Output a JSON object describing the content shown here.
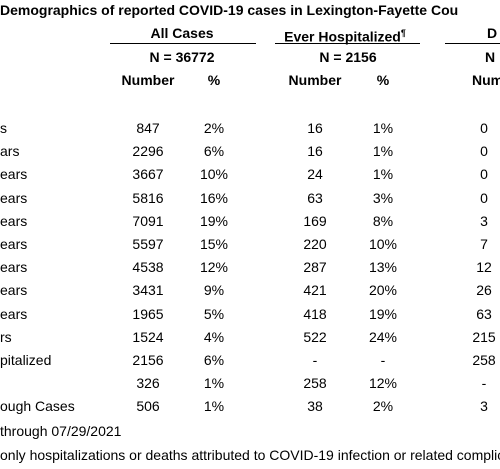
{
  "header": {
    "title": "Demographics of reported COVID-19 cases in Lexington-Fayette Cou"
  },
  "table": {
    "groups": [
      {
        "label": "All Cases",
        "n": "N = 36772"
      },
      {
        "label": "Ever Hospitalized",
        "note_mark": "¶",
        "n": "N = 2156"
      },
      {
        "label": "D",
        "n": "N"
      }
    ],
    "columns": [
      "Number",
      "%",
      "Number",
      "%",
      "Numb"
    ],
    "rows": [
      {
        "label": "s",
        "cells": [
          "847",
          "2%",
          "16",
          "1%",
          "0"
        ]
      },
      {
        "label": "ars",
        "cells": [
          "2296",
          "6%",
          "16",
          "1%",
          "0"
        ]
      },
      {
        "label": "ears",
        "cells": [
          "3667",
          "10%",
          "24",
          "1%",
          "0"
        ]
      },
      {
        "label": "ears",
        "cells": [
          "5816",
          "16%",
          "63",
          "3%",
          "0"
        ]
      },
      {
        "label": "ears",
        "cells": [
          "7091",
          "19%",
          "169",
          "8%",
          "3"
        ]
      },
      {
        "label": "ears",
        "cells": [
          "5597",
          "15%",
          "220",
          "10%",
          "7"
        ]
      },
      {
        "label": "ears",
        "cells": [
          "4538",
          "12%",
          "287",
          "13%",
          "12"
        ]
      },
      {
        "label": "ears",
        "cells": [
          "3431",
          "9%",
          "421",
          "20%",
          "26"
        ]
      },
      {
        "label": "ears",
        "cells": [
          "1965",
          "5%",
          "418",
          "19%",
          "63"
        ]
      },
      {
        "label": "rs",
        "cells": [
          "1524",
          "4%",
          "522",
          "24%",
          "215"
        ]
      },
      {
        "label": "pitalized",
        "cells": [
          "2156",
          "6%",
          "-",
          "-",
          "258"
        ]
      },
      {
        "cells": [
          "326",
          "1%",
          "258",
          "12%",
          "-"
        ]
      },
      {
        "label": "ough Cases",
        "cells": [
          "506",
          "1%",
          "38",
          "2%",
          "3"
        ]
      }
    ]
  },
  "footnotes": [
    "through 07/29/2021",
    "only hospitalizations or deaths attributed to COVID-19 infection or related complic"
  ]
}
